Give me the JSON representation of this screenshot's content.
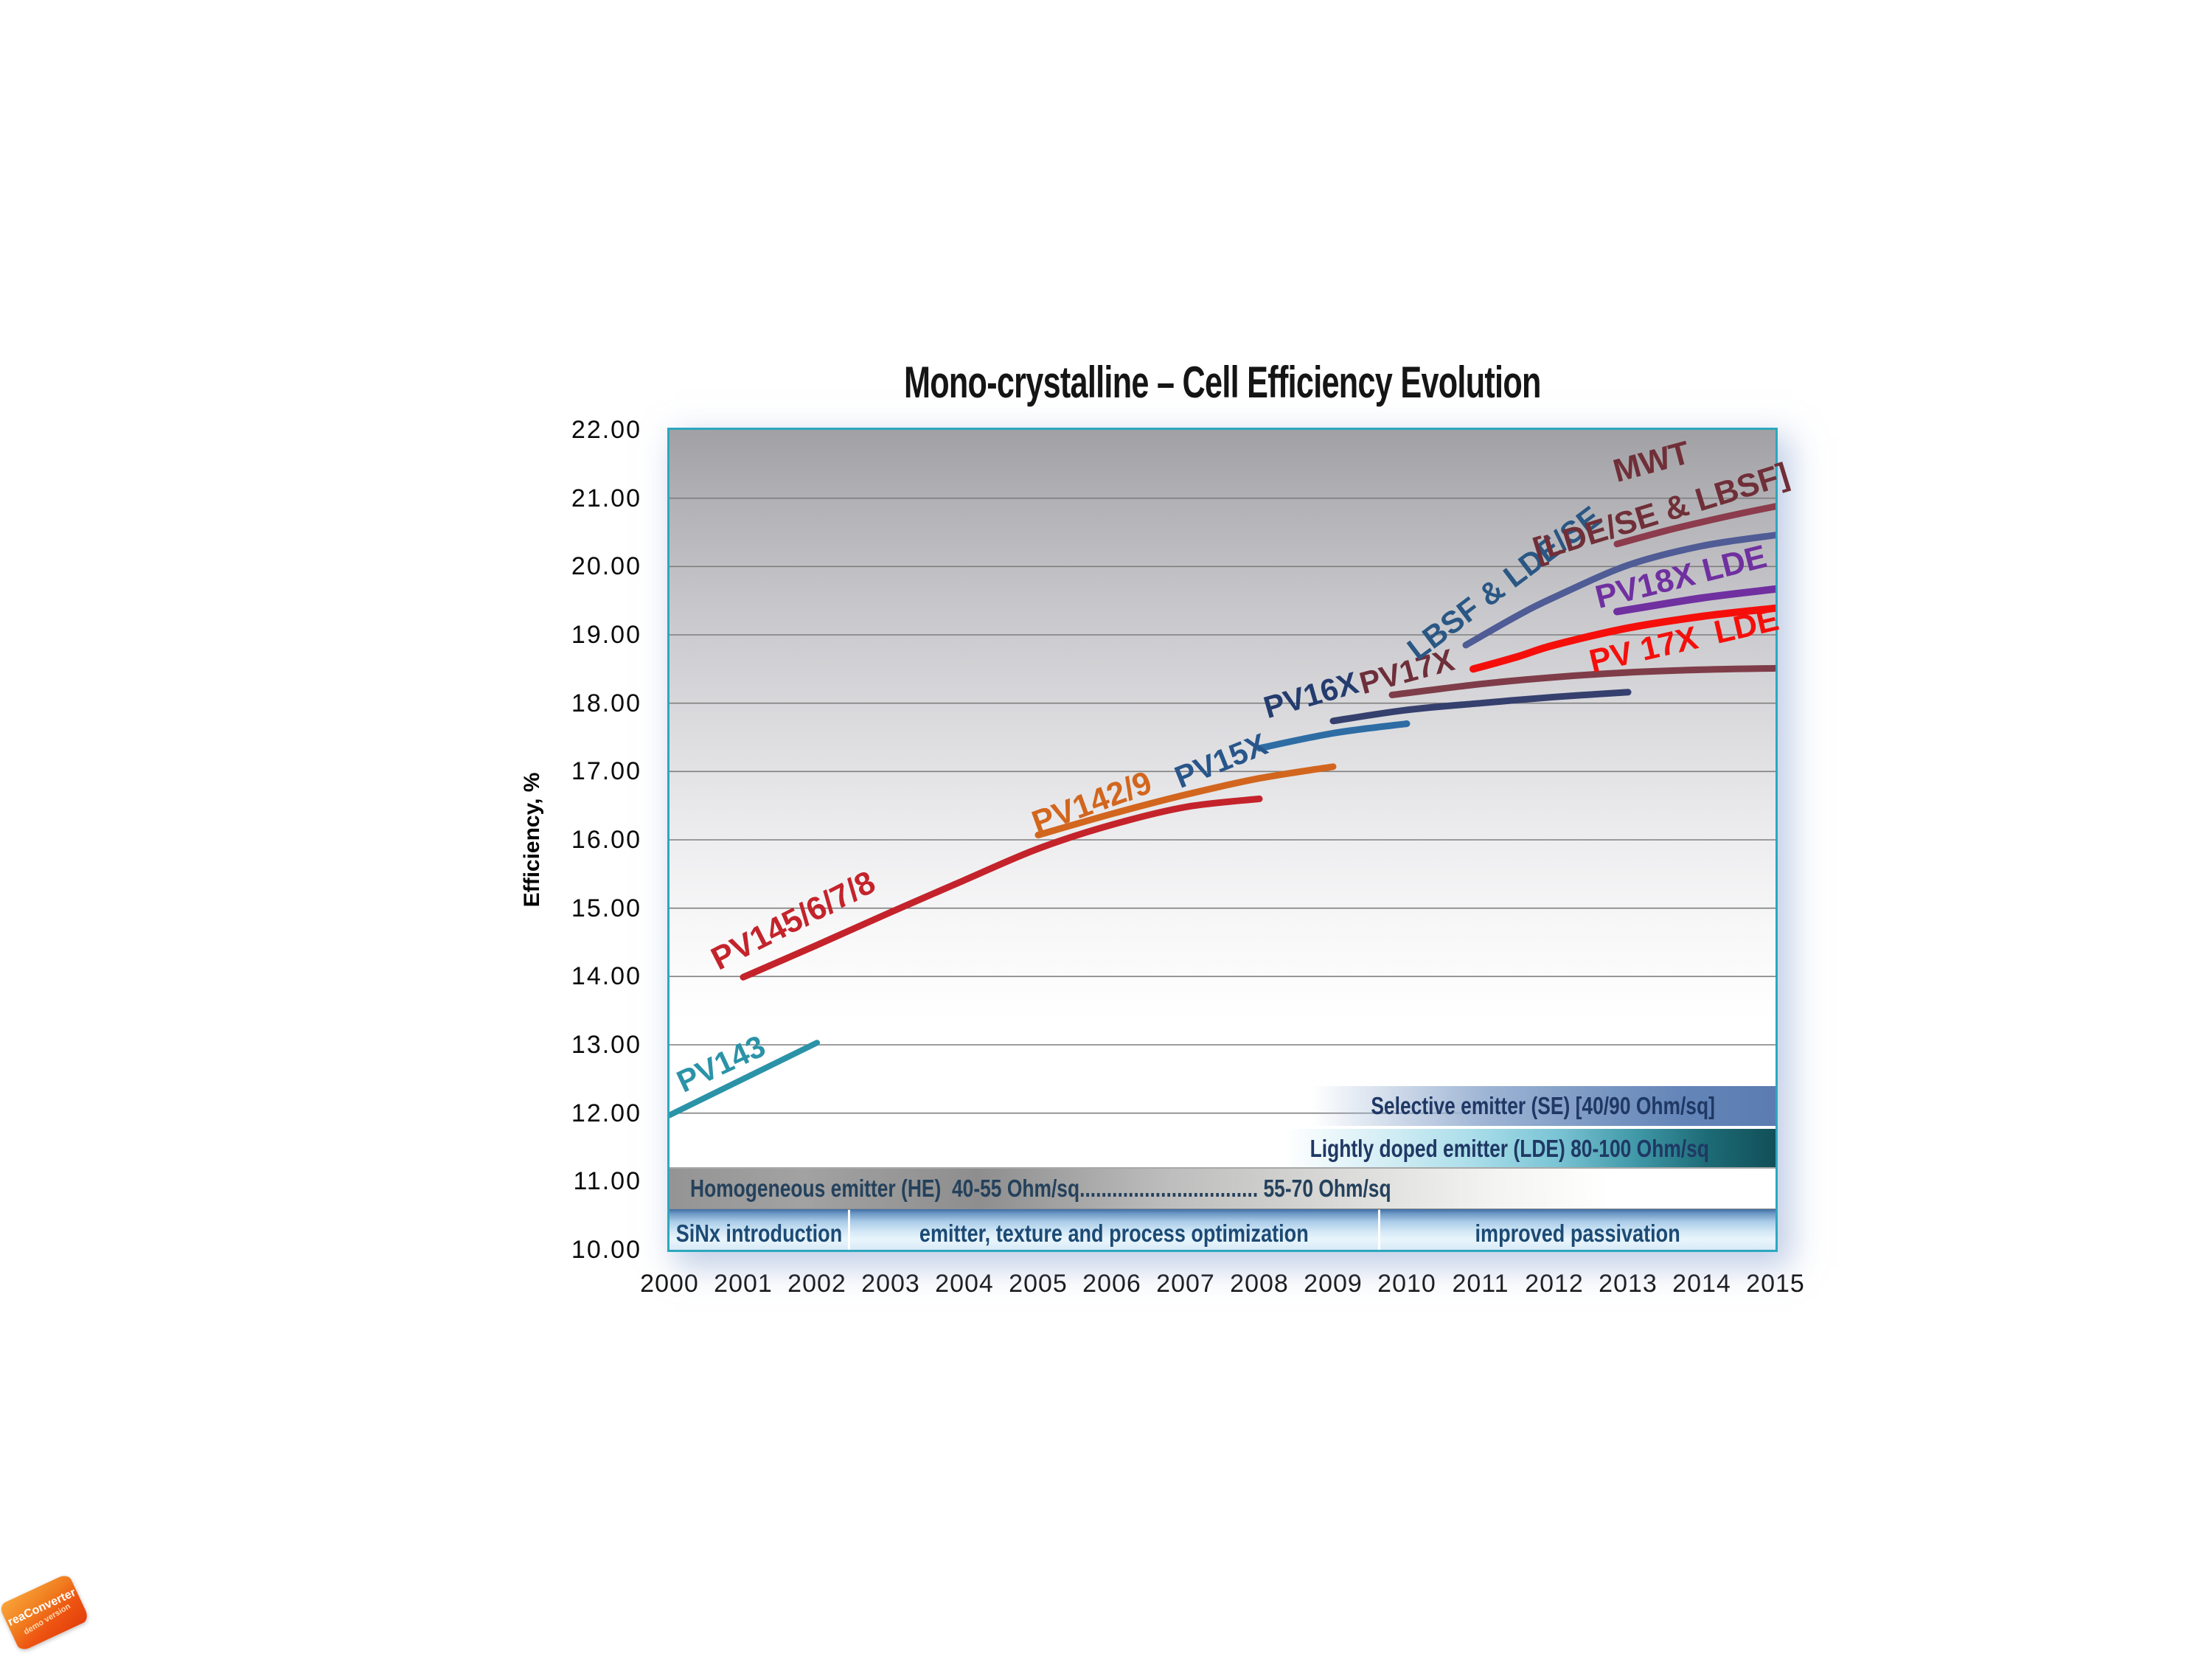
{
  "title": "Mono-crystalline – Cell Efficiency Evolution",
  "y_axis": {
    "label": "Efficiency, %",
    "ticks": [
      "22.00",
      "21.00",
      "20.00",
      "19.00",
      "18.00",
      "17.00",
      "16.00",
      "15.00",
      "14.00",
      "13.00",
      "12.00",
      "11.00",
      "10.00"
    ]
  },
  "x_axis": {
    "ticks": [
      "2000",
      "2001",
      "2002",
      "2003",
      "2004",
      "2005",
      "2006",
      "2007",
      "2008",
      "2009",
      "2010",
      "2011",
      "2012",
      "2013",
      "2014",
      "2015"
    ]
  },
  "colors": {
    "plot_border_teal": "#2EA7BE",
    "gridline": "#7f7f7f",
    "bar_text_navy": "#1F3864",
    "band_text_blue": "#1C4A74",
    "background_top_gray": "#a1a1a5",
    "glow_blue": "#8ca5d2",
    "stamp_orange": "#ee5612"
  },
  "chart_data": {
    "type": "line",
    "title": "Mono-crystalline – Cell Efficiency Evolution",
    "xlabel": "",
    "ylabel": "Efficiency, %",
    "xlim": [
      2000,
      2015
    ],
    "ylim": [
      10,
      22
    ],
    "y_step": 1,
    "grid": "horizontal",
    "series": [
      {
        "name": "PV143",
        "color": "#2B93A8",
        "stroke_width": 8,
        "points": [
          [
            2000,
            11.97
          ],
          [
            2002,
            13.03
          ]
        ],
        "labels": [
          {
            "text": "PV143",
            "year": 2000.7,
            "value": 12.72,
            "rotate": -25,
            "color": "#2B93A8",
            "size": 42
          }
        ]
      },
      {
        "name": "PV145/6/7/8",
        "color": "#C4232B",
        "stroke_width": 9,
        "points": [
          [
            2001,
            13.99
          ],
          [
            2002,
            14.46
          ],
          [
            2003,
            14.94
          ],
          [
            2004,
            15.41
          ],
          [
            2005,
            15.87
          ],
          [
            2006,
            16.22
          ],
          [
            2007,
            16.48
          ],
          [
            2008,
            16.6
          ]
        ],
        "labels": [
          {
            "text": "PV145/6/7/8",
            "year": 2001.68,
            "value": 14.81,
            "rotate": -27,
            "color": "#C4232B",
            "size": 44
          }
        ]
      },
      {
        "name": "PV142/9",
        "color": "#D2661E",
        "stroke_width": 9,
        "points": [
          [
            2005,
            16.07
          ],
          [
            2006,
            16.38
          ],
          [
            2007,
            16.66
          ],
          [
            2008,
            16.9
          ],
          [
            2009,
            17.07
          ]
        ],
        "labels": [
          {
            "text": "PV142/9",
            "year": 2005.73,
            "value": 16.54,
            "rotate": -20,
            "color": "#D2661E",
            "size": 44
          }
        ]
      },
      {
        "name": "PV15X",
        "color": "#2E6DA4",
        "stroke_width": 9,
        "points": [
          [
            2008,
            17.34
          ],
          [
            2009,
            17.56
          ],
          [
            2010,
            17.7
          ]
        ],
        "labels": [
          {
            "text": "PV15X",
            "year": 2007.48,
            "value": 17.15,
            "rotate": -22,
            "color": "#29568A",
            "size": 42
          }
        ]
      },
      {
        "name": "PV16X",
        "color": "#36406E",
        "stroke_width": 9,
        "points": [
          [
            2009,
            17.74
          ],
          [
            2010,
            17.9
          ],
          [
            2011,
            18.0
          ],
          [
            2012,
            18.09
          ],
          [
            2013,
            18.16
          ]
        ],
        "labels": [
          {
            "text": "PV16X",
            "year": 2008.7,
            "value": 18.12,
            "rotate": -16,
            "color": "#243C6E",
            "size": 42
          }
        ]
      },
      {
        "name": "PV17X",
        "color": "#7F3D49",
        "stroke_width": 9,
        "points": [
          [
            2009.8,
            18.12
          ],
          [
            2011,
            18.28
          ],
          [
            2012,
            18.38
          ],
          [
            2013,
            18.45
          ],
          [
            2014,
            18.49
          ],
          [
            2015,
            18.51
          ]
        ],
        "labels": [
          {
            "text": "PV17X",
            "year": 2010.0,
            "value": 18.46,
            "rotate": -15,
            "color": "#6E2F3A",
            "size": 42
          }
        ]
      },
      {
        "name": "LBSF & LDE/SE",
        "color": "#4F5C96",
        "stroke_width": 9,
        "points": [
          [
            2010.8,
            18.85
          ],
          [
            2011.5,
            19.28
          ],
          [
            2012,
            19.55
          ],
          [
            2013,
            20.02
          ],
          [
            2014,
            20.3
          ],
          [
            2015,
            20.46
          ]
        ],
        "labels": [
          {
            "text": "LBSF & LDE/SE",
            "year": 2011.32,
            "value": 19.76,
            "rotate": -37,
            "color": "#2A5784",
            "size": 42
          }
        ]
      },
      {
        "name": "PV 17X LDE",
        "color": "#F50F0B",
        "stroke_width": 10,
        "points": [
          [
            2010.9,
            18.5
          ],
          [
            2011.5,
            18.68
          ],
          [
            2012,
            18.85
          ],
          [
            2013,
            19.1
          ],
          [
            2014,
            19.27
          ],
          [
            2015,
            19.39
          ]
        ],
        "labels": [
          {
            "text": "PV 17X  LDE",
            "year": 2013.76,
            "value": 18.91,
            "rotate": -13,
            "color": "#F50F0B",
            "size": 44
          }
        ]
      },
      {
        "name": "PV18X LDE",
        "color": "#7030A0",
        "stroke_width": 10,
        "points": [
          [
            2012.85,
            19.34
          ],
          [
            2014,
            19.54
          ],
          [
            2015,
            19.67
          ]
        ],
        "labels": [
          {
            "text": "PV18X LDE",
            "year": 2013.72,
            "value": 19.84,
            "rotate": -14,
            "color": "#7030A0",
            "size": 44
          }
        ]
      },
      {
        "name": "MWT [LDE/SE & LBSF]",
        "color": "#8C3C4C",
        "stroke_width": 9,
        "points": [
          [
            2012.85,
            20.33
          ],
          [
            2013.5,
            20.52
          ],
          [
            2014,
            20.65
          ],
          [
            2014.5,
            20.77
          ],
          [
            2015,
            20.88
          ]
        ],
        "labels": [
          {
            "text": "MWT",
            "year": 2013.32,
            "value": 21.53,
            "rotate": -15,
            "color": "#702F38",
            "size": 44
          },
          {
            "text": "[LDE/SE & LBSF]",
            "year": 2013.45,
            "value": 20.79,
            "rotate": -17,
            "color": "#702F38",
            "size": 44
          }
        ]
      }
    ]
  },
  "annotations": {
    "bars": [
      {
        "text": "Selective emitter (SE) [40/90 Ohm/sq]"
      },
      {
        "text": "Lightly doped emitter (LDE) 80-100 Ohm/sq"
      },
      {
        "text": "Homogeneous emitter (HE)  40-55 Ohm/sq................................. 55-70 Ohm/sq"
      }
    ],
    "band": {
      "segments": [
        {
          "text": "SiNx introduction"
        },
        {
          "text": "emitter, texture and process optimization"
        },
        {
          "text": "improved passivation"
        }
      ]
    }
  },
  "watermark": {
    "line1": "reaConverter",
    "line2": "demo version"
  }
}
